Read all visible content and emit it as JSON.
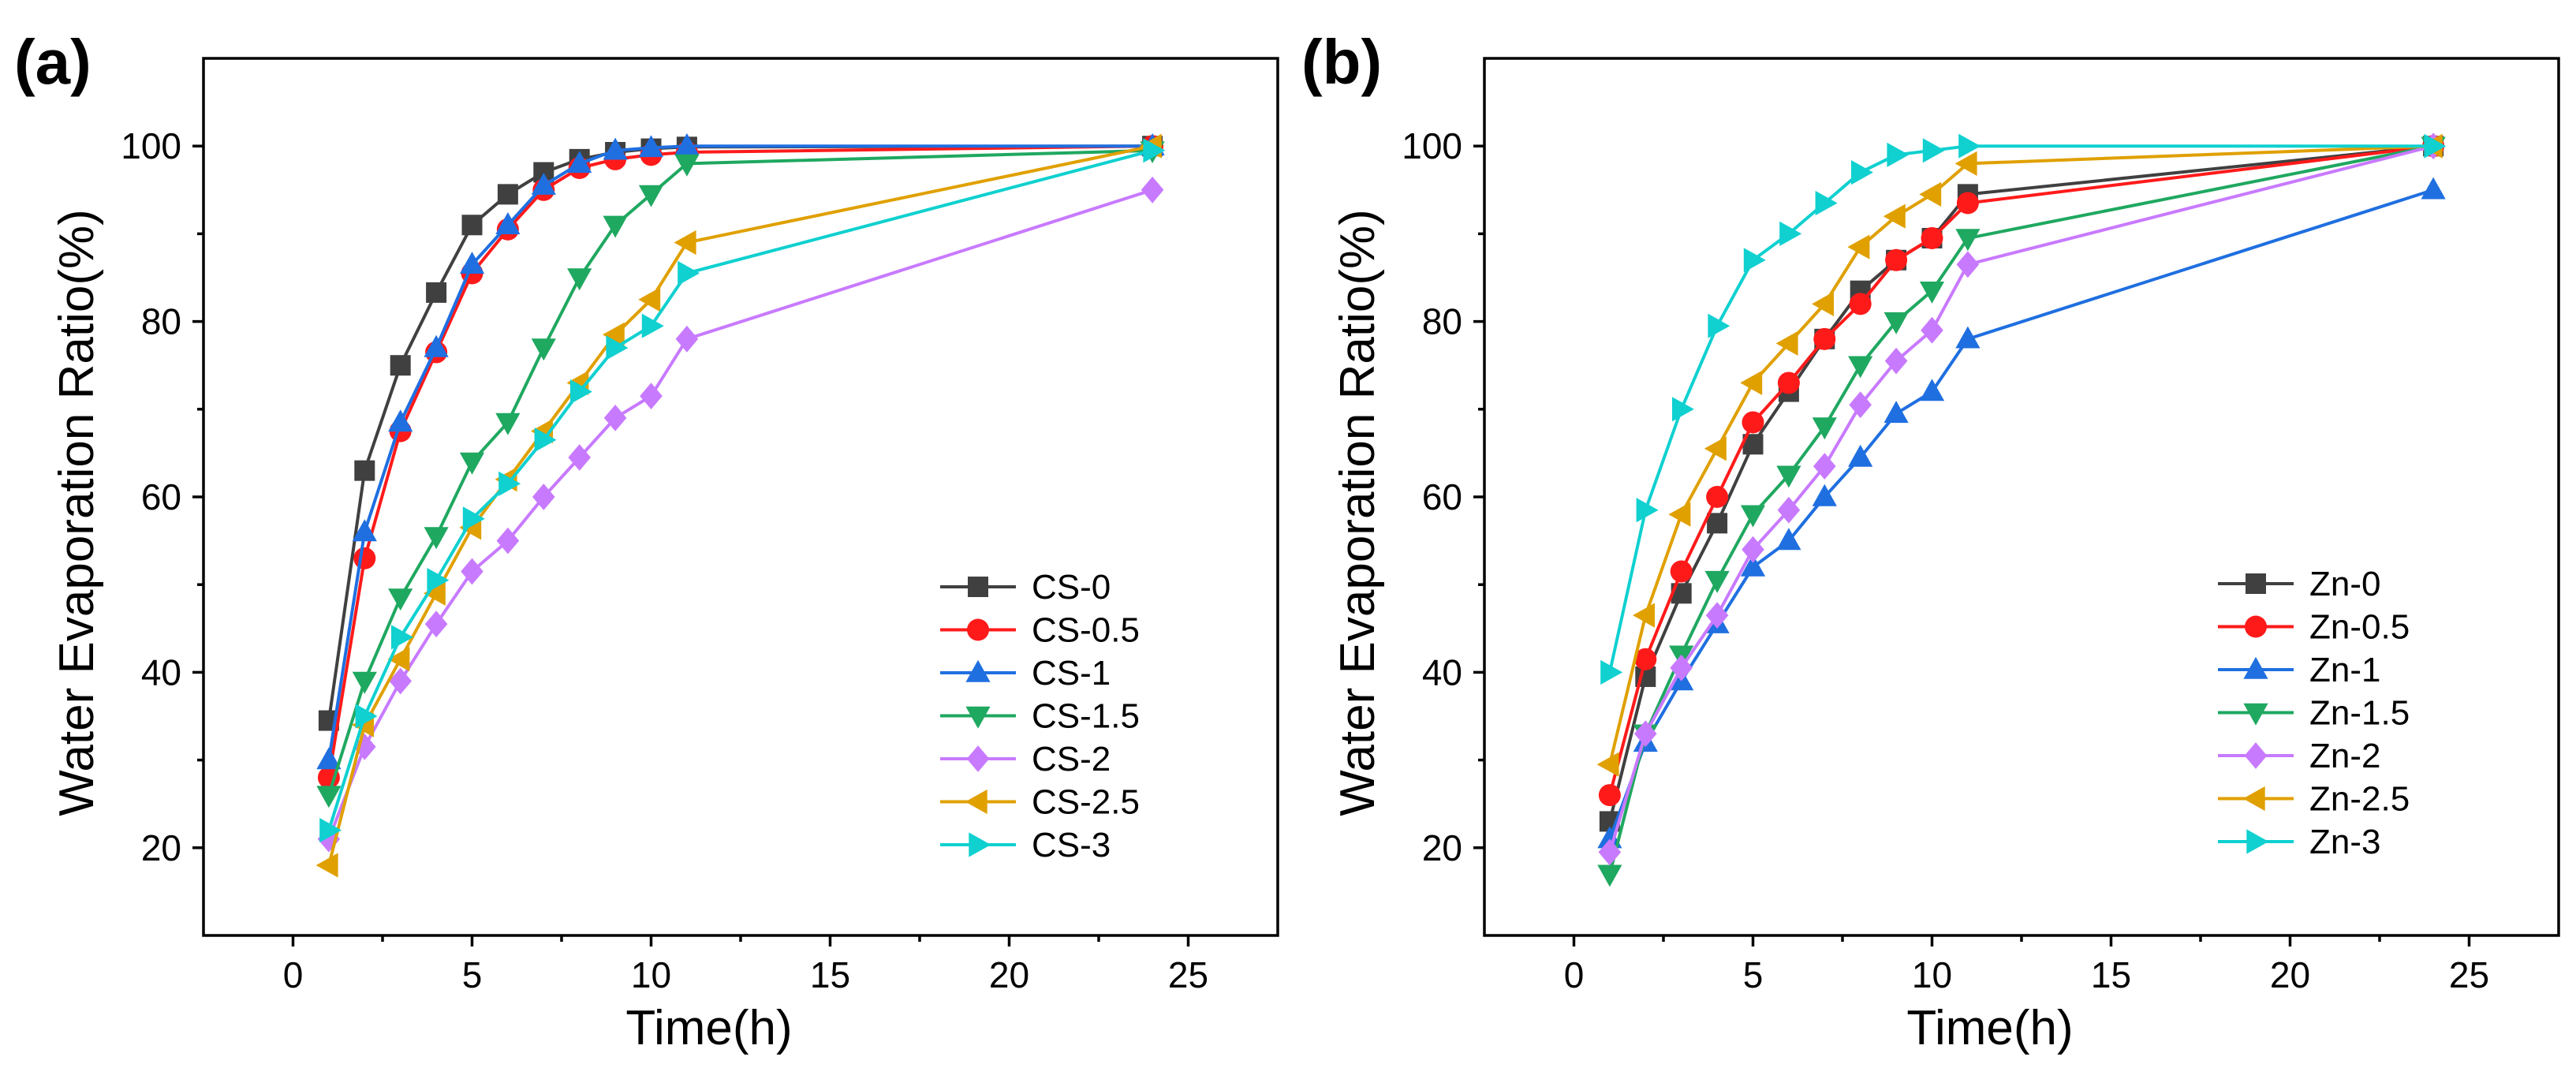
{
  "chart_data": [
    {
      "type": "line",
      "panel_label": "(a)",
      "xlabel": "Time(h)",
      "ylabel": "Water Evaporation Ratio(%)",
      "xlim": [
        -2.5,
        27.5
      ],
      "ylim": [
        10,
        110
      ],
      "xticks": [
        0,
        5,
        10,
        15,
        20,
        25
      ],
      "yticks": [
        20,
        40,
        60,
        80,
        100
      ],
      "x": [
        1,
        2,
        3,
        4,
        5,
        6,
        7,
        8,
        9,
        10,
        11,
        24
      ],
      "legend_position": "bottom-right",
      "series": [
        {
          "name": "CS-0",
          "color": "#404040",
          "marker": "square",
          "values": [
            34.5,
            63,
            75,
            83.3,
            91,
            94.5,
            97,
            98.5,
            99.3,
            99.7,
            99.9,
            100
          ]
        },
        {
          "name": "CS-0.5",
          "color": "#ff1a1a",
          "marker": "circle",
          "values": [
            28,
            53,
            67.5,
            76.5,
            85.5,
            90.5,
            95,
            97.5,
            98.5,
            99,
            99.3,
            100
          ]
        },
        {
          "name": "CS-1",
          "color": "#1f6fe0",
          "marker": "triangle-up",
          "values": [
            30,
            56,
            68.5,
            77,
            86.5,
            91,
            95.5,
            98,
            99.5,
            99.8,
            100,
            100
          ]
        },
        {
          "name": "CS-1.5",
          "color": "#1fa860",
          "marker": "triangle-down",
          "values": [
            26,
            39,
            48.5,
            55.5,
            64,
            68.5,
            77,
            85,
            91,
            94.5,
            98,
            99.5
          ]
        },
        {
          "name": "CS-2",
          "color": "#c87aff",
          "marker": "diamond",
          "values": [
            21,
            31.5,
            39,
            45.5,
            51.5,
            55,
            60,
            64.5,
            69,
            71.5,
            78,
            95
          ]
        },
        {
          "name": "CS-2.5",
          "color": "#e0a000",
          "marker": "triangle-left",
          "values": [
            18,
            34,
            41.5,
            49,
            56.5,
            62,
            67.5,
            73,
            78.5,
            82.5,
            89,
            100
          ]
        },
        {
          "name": "CS-3",
          "color": "#10d0d0",
          "marker": "triangle-right",
          "values": [
            22,
            35,
            44,
            50.5,
            57.5,
            61.5,
            66.5,
            72,
            77,
            79.5,
            85.5,
            99.5
          ]
        }
      ]
    },
    {
      "type": "line",
      "panel_label": "(b)",
      "xlabel": "Time(h)",
      "ylabel": "Water Evaporation Ratio(%)",
      "xlim": [
        -2.5,
        27.5
      ],
      "ylim": [
        10,
        110
      ],
      "xticks": [
        0,
        5,
        10,
        15,
        20,
        25
      ],
      "yticks": [
        20,
        40,
        60,
        80,
        100
      ],
      "x": [
        1,
        2,
        3,
        4,
        5,
        6,
        7,
        8,
        9,
        10,
        11,
        24
      ],
      "legend_position": "bottom-right",
      "series": [
        {
          "name": "Zn-0",
          "color": "#404040",
          "marker": "square",
          "values": [
            23,
            39.5,
            49,
            57,
            66,
            72,
            78,
            83.5,
            87,
            89.5,
            94.5,
            100
          ]
        },
        {
          "name": "Zn-0.5",
          "color": "#ff1a1a",
          "marker": "circle",
          "values": [
            26,
            41.5,
            51.5,
            60,
            68.5,
            73,
            78,
            82,
            87,
            89.5,
            93.5,
            100
          ]
        },
        {
          "name": "Zn-1",
          "color": "#1f6fe0",
          "marker": "triangle-up",
          "values": [
            21,
            32,
            39,
            45.5,
            52,
            55,
            60,
            64.5,
            69.5,
            72,
            78,
            95
          ]
        },
        {
          "name": "Zn-1.5",
          "color": "#1fa860",
          "marker": "triangle-down",
          "values": [
            17,
            33,
            42,
            50.5,
            58,
            62.5,
            68,
            75,
            80,
            83.5,
            89.5,
            100
          ]
        },
        {
          "name": "Zn-2",
          "color": "#c87aff",
          "marker": "diamond",
          "values": [
            19.5,
            33,
            40.5,
            46.5,
            54,
            58.5,
            63.5,
            70.5,
            75.5,
            79,
            86.5,
            100
          ]
        },
        {
          "name": "Zn-2.5",
          "color": "#e0a000",
          "marker": "triangle-left",
          "values": [
            29.5,
            46.5,
            58,
            65.5,
            73,
            77.5,
            82,
            88.5,
            92,
            94.5,
            98,
            100
          ]
        },
        {
          "name": "Zn-3",
          "color": "#10d0d0",
          "marker": "triangle-right",
          "values": [
            40,
            58.5,
            70,
            79.5,
            87,
            90,
            93.5,
            97,
            99,
            99.5,
            100,
            100
          ]
        }
      ]
    }
  ]
}
